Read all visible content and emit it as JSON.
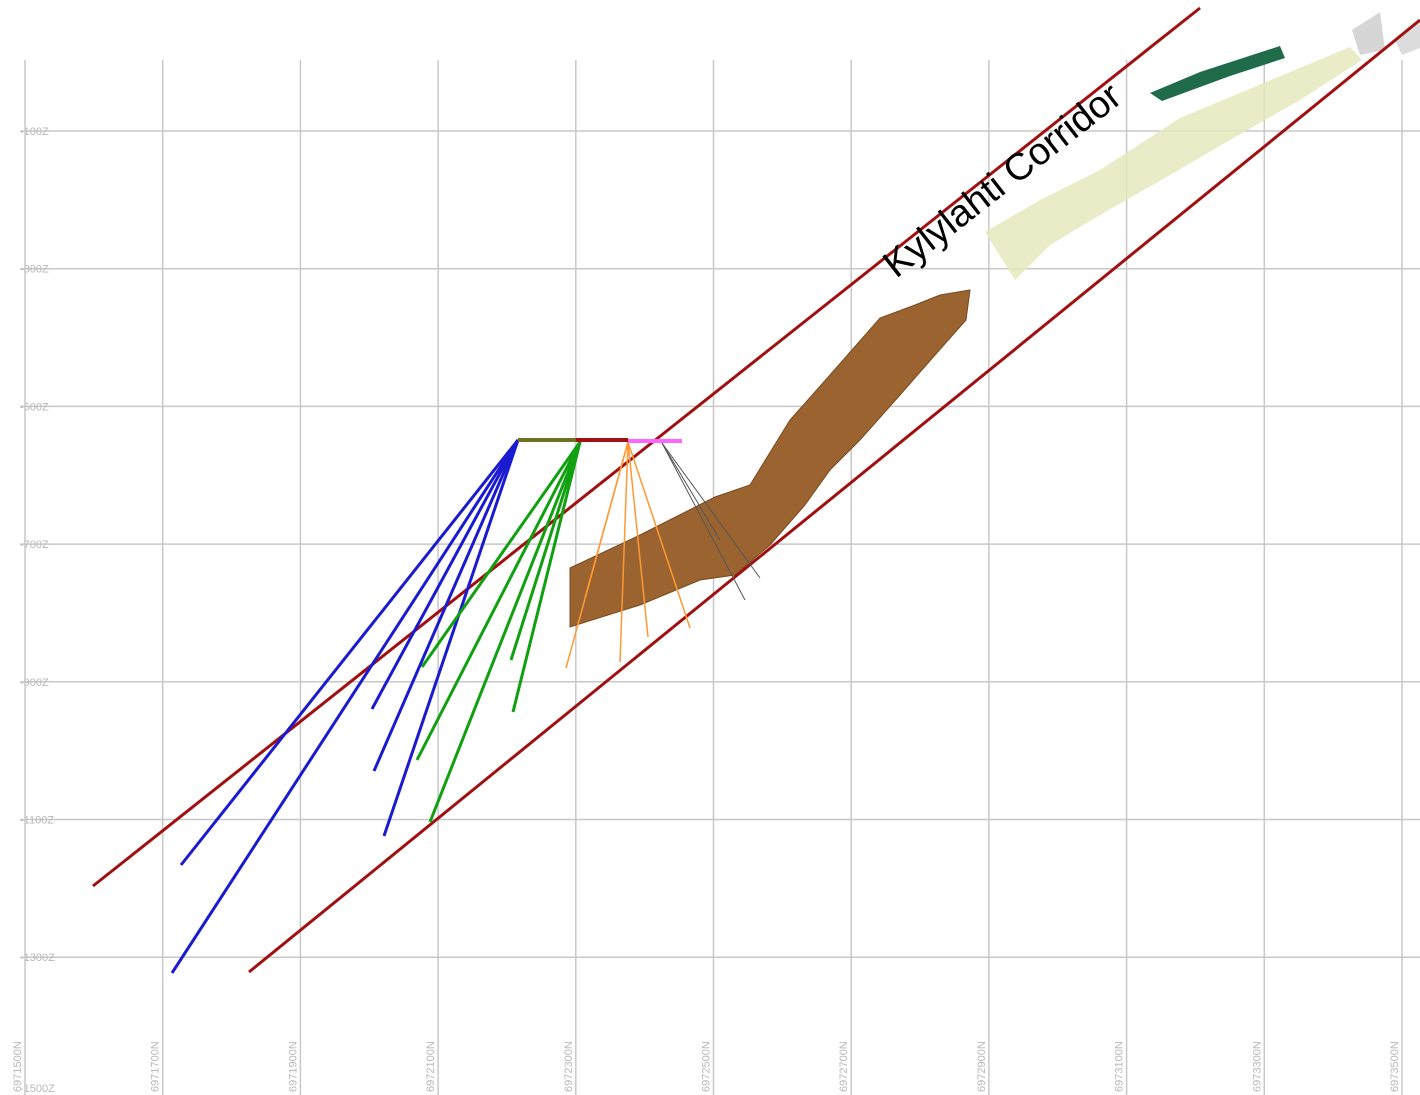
{
  "annotation": "Kylylahti Corridor",
  "grid": {
    "z_labels": [
      "-100Z",
      "-300Z",
      "-500Z",
      "-700Z",
      "-900Z",
      "-1100Z",
      "-1300Z",
      "-1500Z"
    ],
    "n_labels": [
      "6971500N",
      "6971700N",
      "6971900N",
      "6972100N",
      "6972300N",
      "6972500N",
      "6972700N",
      "6972900N",
      "6973100N",
      "6973300N",
      "6973500N"
    ]
  }
}
